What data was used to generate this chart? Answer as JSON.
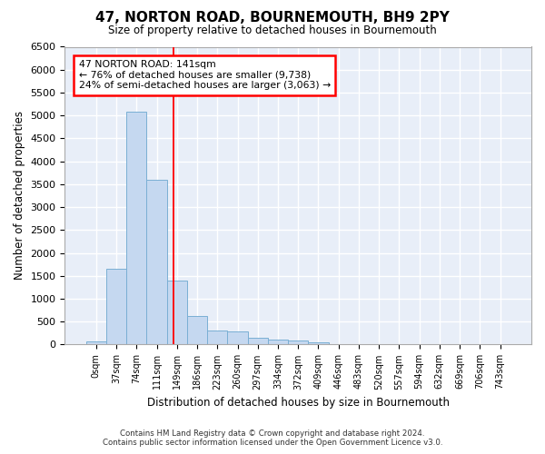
{
  "title": "47, NORTON ROAD, BOURNEMOUTH, BH9 2PY",
  "subtitle": "Size of property relative to detached houses in Bournemouth",
  "xlabel": "Distribution of detached houses by size in Bournemouth",
  "ylabel": "Number of detached properties",
  "footer_line1": "Contains HM Land Registry data © Crown copyright and database right 2024.",
  "footer_line2": "Contains public sector information licensed under the Open Government Licence v3.0.",
  "bar_labels": [
    "0sqm",
    "37sqm",
    "74sqm",
    "111sqm",
    "149sqm",
    "186sqm",
    "223sqm",
    "260sqm",
    "297sqm",
    "334sqm",
    "372sqm",
    "409sqm",
    "446sqm",
    "483sqm",
    "520sqm",
    "557sqm",
    "594sqm",
    "632sqm",
    "669sqm",
    "706sqm",
    "743sqm"
  ],
  "bar_values": [
    70,
    1650,
    5080,
    3600,
    1400,
    620,
    300,
    290,
    145,
    110,
    80,
    55,
    0,
    0,
    0,
    0,
    0,
    0,
    0,
    0,
    0
  ],
  "bar_color": "#c5d8f0",
  "bar_edgecolor": "#7aafd4",
  "ylim": [
    0,
    6500
  ],
  "yticks": [
    0,
    500,
    1000,
    1500,
    2000,
    2500,
    3000,
    3500,
    4000,
    4500,
    5000,
    5500,
    6000,
    6500
  ],
  "vline_x": 3.82,
  "property_label": "47 NORTON ROAD: 141sqm",
  "annotation_line1": "← 76% of detached houses are smaller (9,738)",
  "annotation_line2": "24% of semi-detached houses are larger (3,063) →",
  "bg_color": "#ffffff",
  "axes_bg_color": "#e8eef8",
  "grid_color": "#ffffff"
}
